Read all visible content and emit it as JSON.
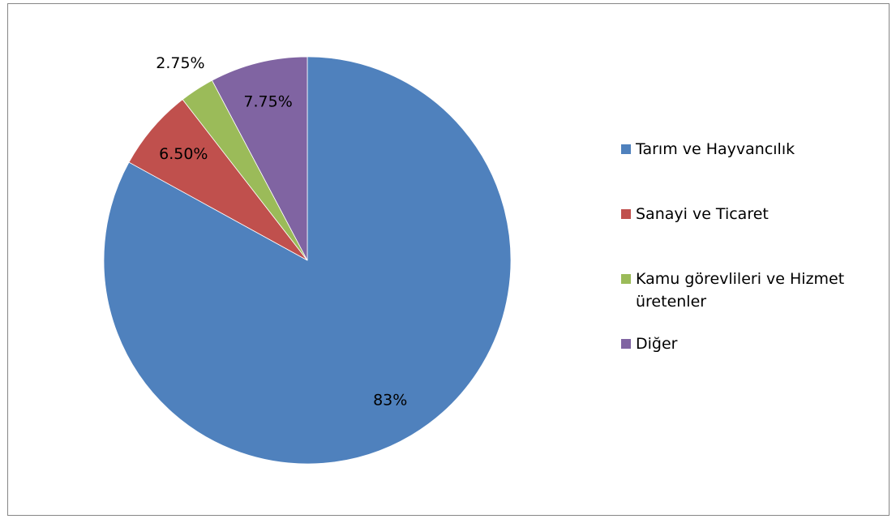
{
  "chart_data": {
    "type": "pie",
    "categories": [
      "Tarım ve Hayvancılık",
      "Sanayi ve Ticaret",
      "Kamu görevlileri ve Hizmet üretenler",
      "Diğer"
    ],
    "values": [
      83,
      6.5,
      2.75,
      7.75
    ],
    "value_labels": [
      "83%",
      "6.50%",
      "2.75%",
      "7.75%"
    ],
    "colors": [
      "#4f81bd",
      "#c0504d",
      "#9bbb59",
      "#8064a2"
    ],
    "legend": "right"
  }
}
